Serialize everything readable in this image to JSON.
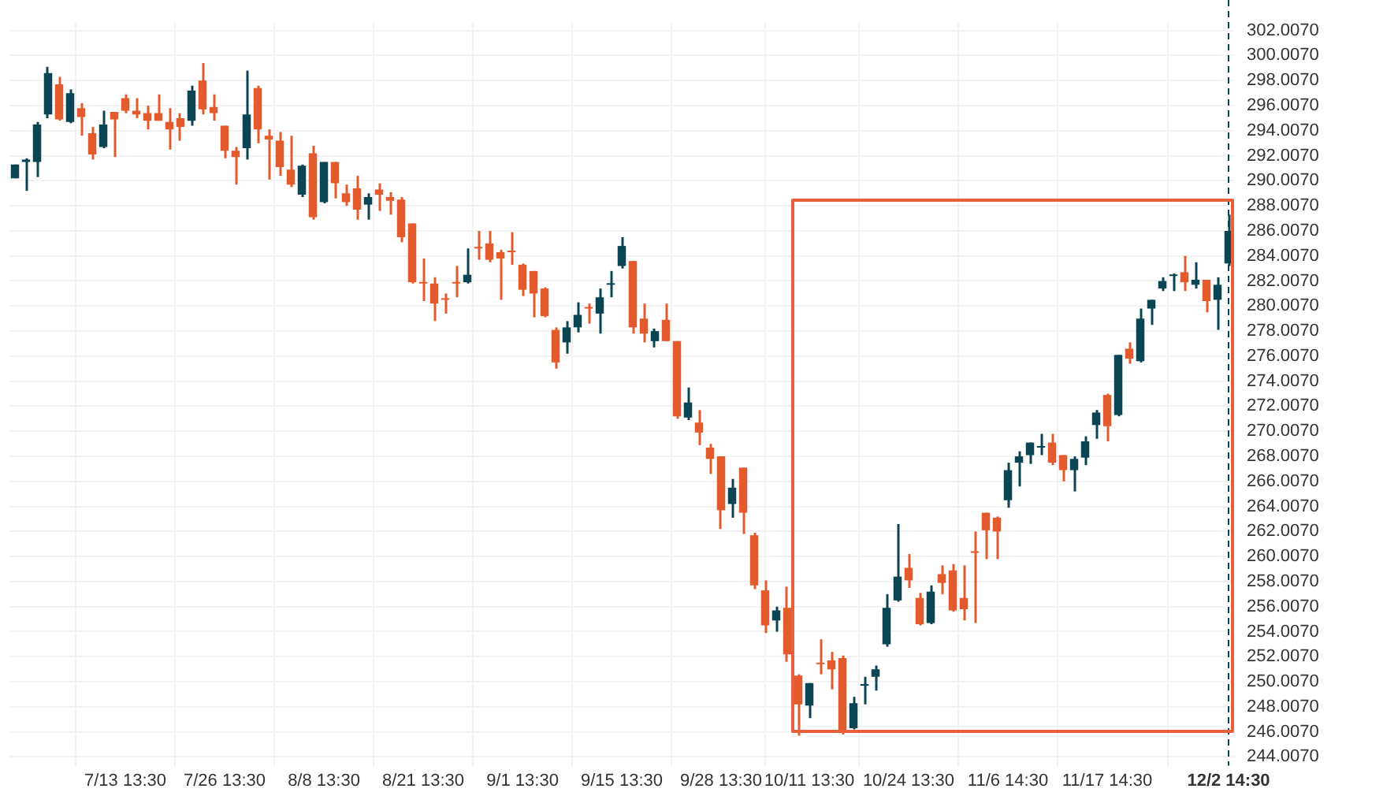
{
  "chart_data": {
    "type": "candlestick",
    "categories": [
      null,
      null,
      null,
      null,
      null,
      null,
      null,
      null,
      null,
      null,
      "7/13 13:30",
      null,
      null,
      null,
      null,
      null,
      null,
      null,
      null,
      "7/26 13:30",
      null,
      null,
      null,
      null,
      null,
      null,
      null,
      null,
      "8/8 13:30",
      null,
      null,
      null,
      null,
      null,
      null,
      null,
      null,
      "8/21 13:30",
      null,
      null,
      null,
      null,
      null,
      null,
      null,
      null,
      "9/1 13:30",
      null,
      null,
      null,
      null,
      null,
      null,
      null,
      null,
      "9/15 13:30",
      null,
      null,
      null,
      null,
      null,
      null,
      null,
      null,
      "9/28 13:30",
      null,
      null,
      null,
      null,
      null,
      null,
      null,
      "10/11 13:30",
      null,
      null,
      null,
      null,
      null,
      null,
      null,
      null,
      "10/24 13:30",
      null,
      null,
      null,
      null,
      null,
      null,
      null,
      null,
      "11/6 14:30",
      null,
      null,
      null,
      null,
      null,
      null,
      null,
      null,
      "11/17 14:30",
      null,
      null,
      null,
      null,
      null,
      null,
      null,
      null,
      null,
      null,
      "12/2 14:30"
    ],
    "ohlc": [
      [
        290.2,
        291.3,
        290.2,
        291.3
      ],
      [
        291.5,
        291.8,
        289.2,
        291.7
      ],
      [
        291.5,
        294.7,
        290.3,
        294.5
      ],
      [
        295.3,
        299.1,
        295.0,
        298.6
      ],
      [
        297.7,
        298.3,
        294.8,
        294.9
      ],
      [
        294.7,
        297.3,
        294.6,
        297.0
      ],
      [
        295.8,
        296.2,
        293.6,
        295.1
      ],
      [
        293.8,
        294.3,
        291.7,
        292.1
      ],
      [
        292.7,
        295.6,
        292.6,
        294.5
      ],
      [
        295.5,
        295.5,
        291.9,
        294.9
      ],
      [
        296.6,
        296.9,
        295.4,
        295.6
      ],
      [
        295.6,
        296.6,
        295.0,
        295.3
      ],
      [
        295.4,
        296.0,
        294.1,
        294.8
      ],
      [
        295.4,
        296.9,
        294.8,
        294.8
      ],
      [
        294.7,
        295.8,
        292.5,
        294.1
      ],
      [
        295.0,
        295.4,
        293.2,
        294.3
      ],
      [
        294.8,
        297.6,
        294.4,
        297.2
      ],
      [
        298.0,
        299.4,
        295.3,
        295.7
      ],
      [
        295.9,
        296.9,
        294.8,
        295.4
      ],
      [
        294.4,
        294.4,
        291.8,
        292.4
      ],
      [
        292.4,
        292.7,
        289.7,
        291.9
      ],
      [
        292.6,
        298.8,
        291.7,
        295.3
      ],
      [
        297.4,
        297.6,
        293.0,
        294.1
      ],
      [
        293.6,
        294.1,
        290.1,
        293.3
      ],
      [
        293.2,
        293.9,
        290.4,
        291.1
      ],
      [
        290.9,
        293.6,
        289.5,
        289.7
      ],
      [
        288.9,
        291.3,
        288.7,
        291.2
      ],
      [
        292.2,
        292.8,
        286.9,
        287.1
      ],
      [
        288.3,
        291.5,
        288.2,
        291.5
      ],
      [
        291.5,
        291.5,
        288.6,
        289.8
      ],
      [
        289.0,
        289.7,
        288.0,
        288.3
      ],
      [
        289.4,
        290.4,
        286.9,
        287.7
      ],
      [
        288.1,
        289.0,
        286.9,
        288.7
      ],
      [
        289.3,
        289.8,
        287.6,
        288.9
      ],
      [
        288.7,
        289.1,
        287.3,
        288.4
      ],
      [
        288.5,
        288.7,
        285.1,
        285.5
      ],
      [
        286.6,
        286.6,
        281.8,
        281.9
      ],
      [
        281.9,
        283.8,
        280.4,
        281.8
      ],
      [
        281.8,
        282.3,
        278.8,
        280.2
      ],
      [
        280.6,
        281.0,
        279.4,
        280.5
      ],
      [
        281.9,
        283.2,
        280.7,
        281.8
      ],
      [
        281.9,
        284.6,
        281.8,
        282.5
      ],
      [
        284.7,
        286.0,
        283.7,
        284.6
      ],
      [
        285.0,
        286.0,
        283.5,
        283.7
      ],
      [
        284.3,
        284.5,
        280.5,
        283.8
      ],
      [
        284.4,
        285.9,
        283.3,
        284.3
      ],
      [
        283.3,
        283.4,
        280.8,
        281.3
      ],
      [
        282.8,
        282.8,
        279.1,
        281.0
      ],
      [
        281.4,
        281.5,
        279.1,
        279.2
      ],
      [
        278.1,
        278.3,
        275.0,
        275.5
      ],
      [
        277.1,
        278.8,
        276.2,
        278.3
      ],
      [
        278.3,
        280.3,
        277.9,
        279.3
      ],
      [
        279.9,
        280.2,
        278.6,
        279.8
      ],
      [
        279.4,
        281.4,
        277.8,
        280.7
      ],
      [
        281.7,
        282.8,
        280.7,
        281.8
      ],
      [
        283.2,
        285.5,
        283.0,
        284.8
      ],
      [
        283.6,
        283.6,
        277.8,
        278.3
      ],
      [
        279.0,
        280.2,
        277.1,
        277.8
      ],
      [
        277.2,
        278.2,
        276.7,
        278.0
      ],
      [
        278.9,
        280.2,
        277.2,
        277.2
      ],
      [
        277.2,
        277.2,
        271.0,
        271.2
      ],
      [
        271.1,
        273.5,
        270.9,
        272.3
      ],
      [
        270.7,
        271.7,
        268.9,
        269.9
      ],
      [
        268.7,
        269.0,
        266.6,
        267.8
      ],
      [
        268.0,
        268.0,
        262.2,
        263.7
      ],
      [
        264.2,
        266.2,
        263.1,
        265.5
      ],
      [
        267.1,
        267.1,
        261.8,
        263.5
      ],
      [
        261.7,
        261.9,
        257.4,
        257.7
      ],
      [
        257.3,
        258.1,
        253.9,
        254.5
      ],
      [
        254.9,
        256.0,
        254.0,
        255.7
      ],
      [
        255.9,
        257.6,
        251.6,
        252.2
      ],
      [
        250.5,
        250.6,
        245.7,
        248.2
      ],
      [
        248.1,
        249.9,
        247.1,
        249.9
      ],
      [
        251.5,
        253.4,
        250.6,
        251.4
      ],
      [
        251.7,
        252.4,
        249.4,
        251.0
      ],
      [
        251.9,
        252.1,
        245.8,
        246.1
      ],
      [
        246.3,
        248.8,
        246.2,
        248.3
      ],
      [
        249.7,
        250.4,
        248.2,
        249.8
      ],
      [
        250.4,
        251.3,
        249.3,
        251.0
      ],
      [
        253.0,
        257.0,
        252.8,
        255.9
      ],
      [
        256.5,
        262.6,
        256.4,
        258.4
      ],
      [
        259.1,
        260.2,
        257.5,
        258.1
      ],
      [
        256.7,
        257.1,
        254.5,
        254.6
      ],
      [
        254.7,
        257.7,
        254.6,
        257.2
      ],
      [
        258.6,
        259.3,
        257.0,
        257.9
      ],
      [
        258.9,
        259.4,
        255.6,
        255.7
      ],
      [
        256.7,
        259.3,
        254.9,
        255.8
      ],
      [
        260.4,
        262.0,
        254.7,
        260.3
      ],
      [
        263.5,
        263.5,
        259.8,
        262.1
      ],
      [
        263.1,
        263.2,
        259.8,
        262.0
      ],
      [
        264.5,
        267.5,
        263.9,
        266.9
      ],
      [
        267.5,
        268.4,
        265.6,
        268.0
      ],
      [
        268.1,
        269.1,
        267.4,
        269.1
      ],
      [
        268.7,
        269.8,
        268.1,
        268.8
      ],
      [
        269.1,
        269.8,
        267.3,
        267.5
      ],
      [
        268.1,
        268.1,
        266.0,
        266.9
      ],
      [
        266.9,
        268.0,
        265.2,
        267.8
      ],
      [
        267.9,
        269.6,
        267.3,
        269.2
      ],
      [
        270.5,
        271.7,
        269.4,
        271.5
      ],
      [
        272.9,
        273.0,
        269.2,
        270.4
      ],
      [
        271.3,
        276.1,
        271.2,
        276.1
      ],
      [
        276.6,
        277.1,
        275.4,
        275.8
      ],
      [
        275.6,
        279.8,
        275.5,
        279.0
      ],
      [
        279.8,
        280.5,
        278.5,
        280.5
      ],
      [
        281.4,
        282.3,
        281.2,
        282.0
      ],
      [
        282.4,
        282.6,
        281.2,
        282.5
      ],
      [
        282.7,
        284.0,
        281.2,
        281.9
      ],
      [
        281.7,
        283.5,
        281.4,
        282.1
      ],
      [
        282.1,
        282.1,
        279.5,
        280.4
      ],
      [
        280.5,
        282.3,
        278.1,
        281.7
      ],
      [
        283.4,
        287.3,
        283.2,
        286.0
      ]
    ],
    "colors": [
      "#0b4553",
      "#0b4553",
      "#0b4553",
      "#0b4553",
      "#e35b2c",
      "#0b4553",
      "#e35b2c",
      "#e35b2c",
      "#0b4553",
      "#e35b2c",
      "#e35b2c",
      "#e35b2c",
      "#e35b2c",
      "#e35b2c",
      "#e35b2c",
      "#e35b2c",
      "#0b4553",
      "#e35b2c",
      "#e35b2c",
      "#e35b2c",
      "#e35b2c",
      "#0b4553",
      "#e35b2c",
      "#e35b2c",
      "#e35b2c",
      "#e35b2c",
      "#0b4553",
      "#e35b2c",
      "#0b4553",
      "#e35b2c",
      "#e35b2c",
      "#e35b2c",
      "#0b4553",
      "#e35b2c",
      "#e35b2c",
      "#e35b2c",
      "#e35b2c",
      "#e35b2c",
      "#e35b2c",
      "#e35b2c",
      "#e35b2c",
      "#0b4553",
      "#e35b2c",
      "#e35b2c",
      "#e35b2c",
      "#e35b2c",
      "#e35b2c",
      "#e35b2c",
      "#e35b2c",
      "#e35b2c",
      "#0b4553",
      "#0b4553",
      "#e35b2c",
      "#0b4553",
      "#0b4553",
      "#0b4553",
      "#e35b2c",
      "#e35b2c",
      "#0b4553",
      "#e35b2c",
      "#e35b2c",
      "#0b4553",
      "#e35b2c",
      "#e35b2c",
      "#e35b2c",
      "#0b4553",
      "#e35b2c",
      "#e35b2c",
      "#e35b2c",
      "#0b4553",
      "#e35b2c",
      "#e35b2c",
      "#0b4553",
      "#e35b2c",
      "#e35b2c",
      "#e35b2c",
      "#0b4553",
      "#0b4553",
      "#0b4553",
      "#0b4553",
      "#0b4553",
      "#e35b2c",
      "#e35b2c",
      "#0b4553",
      "#e35b2c",
      "#e35b2c",
      "#e35b2c",
      "#e35b2c",
      "#e35b2c",
      "#e35b2c",
      "#0b4553",
      "#0b4553",
      "#0b4553",
      "#0b4553",
      "#e35b2c",
      "#e35b2c",
      "#0b4553",
      "#0b4553",
      "#0b4553",
      "#e35b2c",
      "#0b4553",
      "#e35b2c",
      "#0b4553",
      "#0b4553",
      "#0b4553",
      "#0b4553",
      "#e35b2c",
      "#0b4553",
      "#e35b2c",
      "#0b4553",
      "#0b4553"
    ],
    "ylim": [
      243.3,
      302.6
    ],
    "yticks": [
      {
        "value": 244.007,
        "label": "244.0070"
      },
      {
        "value": 246.007,
        "label": "246.0070"
      },
      {
        "value": 248.007,
        "label": "248.0070"
      },
      {
        "value": 250.007,
        "label": "250.0070"
      },
      {
        "value": 252.007,
        "label": "252.0070"
      },
      {
        "value": 254.007,
        "label": "254.0070"
      },
      {
        "value": 256.007,
        "label": "256.0070"
      },
      {
        "value": 258.007,
        "label": "258.0070"
      },
      {
        "value": 260.007,
        "label": "260.0070"
      },
      {
        "value": 262.007,
        "label": "262.0070"
      },
      {
        "value": 264.007,
        "label": "264.0070"
      },
      {
        "value": 266.007,
        "label": "266.0070"
      },
      {
        "value": 268.007,
        "label": "268.0070"
      },
      {
        "value": 270.007,
        "label": "270.0070"
      },
      {
        "value": 272.007,
        "label": "272.0070"
      },
      {
        "value": 274.007,
        "label": "274.0070"
      },
      {
        "value": 276.007,
        "label": "276.0070"
      },
      {
        "value": 278.007,
        "label": "278.0070"
      },
      {
        "value": 280.007,
        "label": "280.0070"
      },
      {
        "value": 282.007,
        "label": "282.0070"
      },
      {
        "value": 284.007,
        "label": "284.0070"
      },
      {
        "value": 286.007,
        "label": "286.0070"
      },
      {
        "value": 288.007,
        "label": "288.0070"
      },
      {
        "value": 290.007,
        "label": "290.0070"
      },
      {
        "value": 292.007,
        "label": "292.0070"
      },
      {
        "value": 294.007,
        "label": "294.0070"
      },
      {
        "value": 296.007,
        "label": "296.0070"
      },
      {
        "value": 298.007,
        "label": "298.0070"
      },
      {
        "value": 300.007,
        "label": "300.0070"
      },
      {
        "value": 302.007,
        "label": "302.0070"
      }
    ],
    "ref_lines": [
      {
        "axis": "x",
        "value": "12/2 14:30",
        "color": "#0b4553",
        "line_style": "dashed"
      }
    ],
    "grid": true,
    "legend": false
  }
}
